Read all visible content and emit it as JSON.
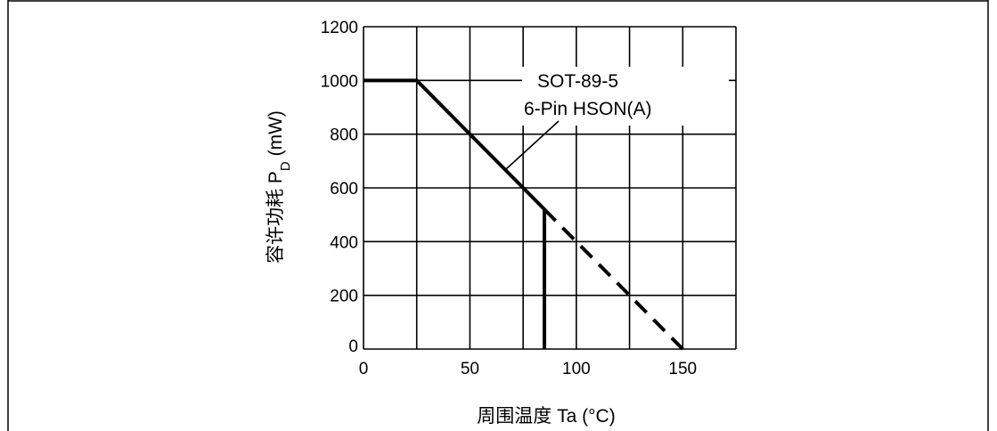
{
  "chart_data": {
    "type": "line",
    "xlabel": "周围温度 Ta (°C)",
    "ylabel_main": "容许功耗 P",
    "ylabel_sub": "D",
    "ylabel_unit": " (mW)",
    "xlim": [
      0,
      175
    ],
    "ylim": [
      0,
      1200
    ],
    "x_ticks": [
      0,
      50,
      100,
      150
    ],
    "y_ticks": [
      0,
      200,
      400,
      600,
      800,
      1000,
      1200
    ],
    "x_grid": [
      0,
      25,
      50,
      75,
      100,
      125,
      150,
      175
    ],
    "y_grid": [
      0,
      200,
      400,
      600,
      800,
      1000,
      1200
    ],
    "grid": true,
    "series": [
      {
        "style": "solid",
        "points": [
          [
            0,
            1000
          ],
          [
            25,
            1000
          ],
          [
            85,
            520
          ],
          [
            85,
            0
          ]
        ]
      },
      {
        "style": "dashed",
        "points": [
          [
            85,
            520
          ],
          [
            150,
            0
          ]
        ]
      }
    ],
    "annotation": {
      "lines": [
        "SOT-89-5",
        "6-Pin HSON(A)"
      ],
      "points_to": [
        67,
        670
      ]
    }
  }
}
